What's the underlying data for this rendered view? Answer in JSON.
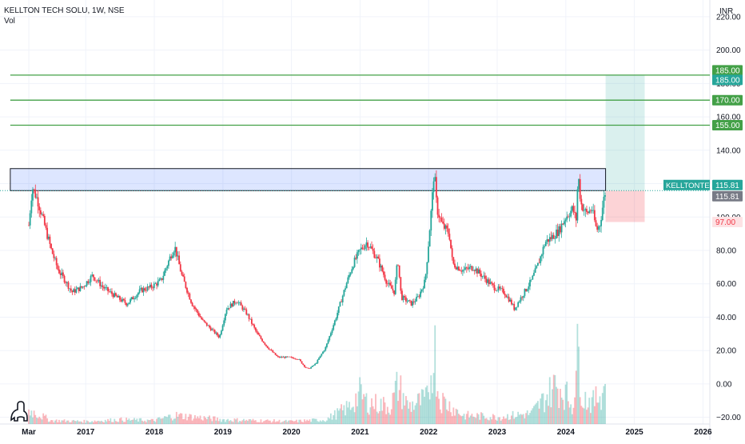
{
  "header": {
    "symbol": "KELLTON TECH SOLU, 1W, NSE",
    "volume_label": "Vol",
    "currency": "INR"
  },
  "chart_data": {
    "type": "candlestick",
    "x_ticks": [
      "Mar",
      "2017",
      "2018",
      "2019",
      "2020",
      "2021",
      "2022",
      "2023",
      "2024",
      "2025",
      "2026"
    ],
    "x_tick_dates": [
      2016.17,
      2017.0,
      2018.0,
      2019.0,
      2020.0,
      2021.0,
      2022.0,
      2023.0,
      2024.0,
      2025.0,
      2026.0
    ],
    "y_ticks": [
      -20,
      0,
      20,
      40,
      60,
      80,
      100,
      120,
      140,
      160,
      180,
      200,
      220
    ],
    "y_tick_labels": [
      "−20.00",
      "0.00",
      "20.00",
      "40.00",
      "60.00",
      "80.00",
      "100.00",
      "120.00",
      "140.00",
      "160.00",
      "180.00",
      "200.00",
      "220.00"
    ],
    "ylim": [
      -24,
      230
    ],
    "xlim": [
      2015.75,
      2026.1
    ],
    "price_path": [
      [
        2016.17,
        95
      ],
      [
        2016.22,
        118
      ],
      [
        2016.3,
        110
      ],
      [
        2016.4,
        95
      ],
      [
        2016.5,
        80
      ],
      [
        2016.6,
        68
      ],
      [
        2016.7,
        62
      ],
      [
        2016.8,
        55
      ],
      [
        2016.95,
        58
      ],
      [
        2017.1,
        65
      ],
      [
        2017.25,
        58
      ],
      [
        2017.45,
        52
      ],
      [
        2017.6,
        48
      ],
      [
        2017.8,
        56
      ],
      [
        2017.95,
        58
      ],
      [
        2018.1,
        62
      ],
      [
        2018.25,
        78
      ],
      [
        2018.3,
        82
      ],
      [
        2018.4,
        65
      ],
      [
        2018.55,
        48
      ],
      [
        2018.7,
        38
      ],
      [
        2018.85,
        32
      ],
      [
        2018.95,
        28
      ],
      [
        2019.05,
        45
      ],
      [
        2019.2,
        50
      ],
      [
        2019.35,
        42
      ],
      [
        2019.5,
        30
      ],
      [
        2019.65,
        22
      ],
      [
        2019.8,
        16
      ],
      [
        2019.95,
        16
      ],
      [
        2020.1,
        15
      ],
      [
        2020.2,
        10
      ],
      [
        2020.25,
        9
      ],
      [
        2020.35,
        12
      ],
      [
        2020.5,
        22
      ],
      [
        2020.65,
        40
      ],
      [
        2020.8,
        60
      ],
      [
        2020.9,
        72
      ],
      [
        2021.0,
        80
      ],
      [
        2021.1,
        85
      ],
      [
        2021.25,
        75
      ],
      [
        2021.4,
        60
      ],
      [
        2021.5,
        55
      ],
      [
        2021.55,
        75
      ],
      [
        2021.6,
        52
      ],
      [
        2021.75,
        48
      ],
      [
        2021.85,
        52
      ],
      [
        2021.95,
        62
      ],
      [
        2022.0,
        85
      ],
      [
        2022.05,
        110
      ],
      [
        2022.08,
        128
      ],
      [
        2022.12,
        105
      ],
      [
        2022.2,
        95
      ],
      [
        2022.3,
        90
      ],
      [
        2022.35,
        72
      ],
      [
        2022.5,
        68
      ],
      [
        2022.65,
        70
      ],
      [
        2022.8,
        64
      ],
      [
        2022.95,
        58
      ],
      [
        2023.1,
        55
      ],
      [
        2023.2,
        49
      ],
      [
        2023.25,
        45
      ],
      [
        2023.35,
        52
      ],
      [
        2023.5,
        62
      ],
      [
        2023.6,
        72
      ],
      [
        2023.7,
        85
      ],
      [
        2023.8,
        88
      ],
      [
        2023.9,
        92
      ],
      [
        2024.0,
        100
      ],
      [
        2024.1,
        105
      ],
      [
        2024.15,
        98
      ],
      [
        2024.18,
        126
      ],
      [
        2024.22,
        108
      ],
      [
        2024.3,
        102
      ],
      [
        2024.38,
        105
      ],
      [
        2024.45,
        92
      ],
      [
        2024.5,
        96
      ],
      [
        2024.55,
        110
      ],
      [
        2024.58,
        115.81
      ]
    ],
    "volume_path": [
      [
        2016.2,
        0.15
      ],
      [
        2016.5,
        0.04
      ],
      [
        2017.0,
        0.03
      ],
      [
        2017.5,
        0.05
      ],
      [
        2018.0,
        0.04
      ],
      [
        2018.3,
        0.1
      ],
      [
        2019.0,
        0.05
      ],
      [
        2019.5,
        0.04
      ],
      [
        2020.0,
        0.03
      ],
      [
        2020.5,
        0.05
      ],
      [
        2020.85,
        0.2
      ],
      [
        2021.0,
        0.35
      ],
      [
        2021.1,
        0.25
      ],
      [
        2021.45,
        0.2
      ],
      [
        2021.55,
        0.45
      ],
      [
        2021.7,
        0.2
      ],
      [
        2022.0,
        0.3
      ],
      [
        2022.05,
        0.7
      ],
      [
        2022.08,
        0.95
      ],
      [
        2022.15,
        0.3
      ],
      [
        2022.5,
        0.1
      ],
      [
        2023.0,
        0.08
      ],
      [
        2023.5,
        0.12
      ],
      [
        2023.7,
        0.3
      ],
      [
        2023.85,
        0.45
      ],
      [
        2024.0,
        0.35
      ],
      [
        2024.1,
        0.2
      ],
      [
        2024.18,
        0.85
      ],
      [
        2024.25,
        0.3
      ],
      [
        2024.4,
        0.25
      ],
      [
        2024.55,
        0.4
      ],
      [
        2024.58,
        0.5
      ]
    ],
    "volume_scale_max": 41,
    "volume_floor": -24,
    "horizontal_lines": [
      {
        "label": "185.00",
        "value": 185,
        "color": "#43a047",
        "x_from": 2015.9
      },
      {
        "label": "170.00",
        "value": 170,
        "color": "#43a047",
        "x_from": 2015.9
      },
      {
        "label": "155.00",
        "value": 155,
        "color": "#43a047",
        "x_from": 2015.9
      }
    ],
    "resistance_zone": {
      "y_top": 129,
      "y_bottom": 115.81,
      "x_from": 2015.9,
      "x_to": 2024.58
    },
    "long_position": {
      "x_from": 2024.58,
      "x_to": 2025.15,
      "entry": 115.81,
      "target": 185,
      "stop": 97
    },
    "price_tags": [
      {
        "label": "185.00",
        "value": 185,
        "color": "#43a047",
        "offset": -6
      },
      {
        "label": "185.00",
        "value": 185,
        "color": "#26a69a",
        "offset": 6
      },
      {
        "label": "170.00",
        "value": 170,
        "color": "#43a047",
        "offset": 0
      },
      {
        "label": "155.00",
        "value": 155,
        "color": "#43a047",
        "offset": 0
      },
      {
        "label": "115.81",
        "value": 115.81,
        "color": "#26a69a",
        "offset": -7
      },
      {
        "label": "115.81",
        "value": 115.81,
        "color": "#787b86",
        "offset": 7
      },
      {
        "label": "97.00",
        "value": 97,
        "color": "#f23645",
        "offset": 0,
        "light": true
      }
    ],
    "symbol_tag": {
      "label": "KELLTONTEC",
      "value": 115.81,
      "offset": -7,
      "color": "#26a69a"
    },
    "last_price": 115.81
  }
}
